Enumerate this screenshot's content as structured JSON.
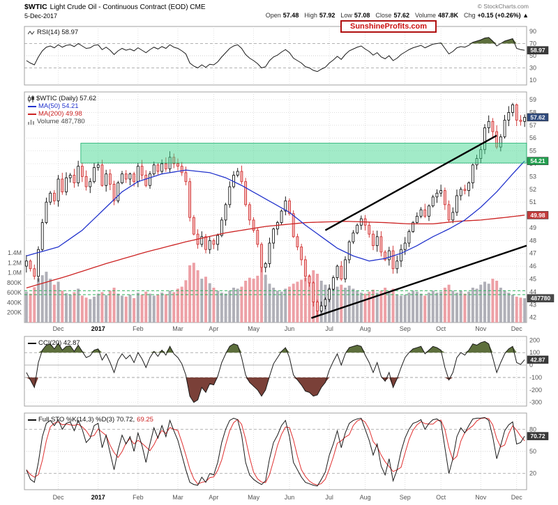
{
  "header": {
    "symbol": "$WTIC",
    "title": "Light Crude Oil - Continuous Contract (EOD) CME",
    "copyright": "© StockCharts.com",
    "date": "5-Dec-2017",
    "watermark": "SunshineProfits.com",
    "quote_items": [
      {
        "label": "Open",
        "value": "57.48"
      },
      {
        "label": "High",
        "value": "57.92"
      },
      {
        "label": "Low",
        "value": "57.08"
      },
      {
        "label": "Close",
        "value": "57.62"
      },
      {
        "label": "Volume",
        "value": "487.8K"
      },
      {
        "label": "Chg",
        "value": "+0.15 (+0.26%) ▲"
      }
    ]
  },
  "legends": {
    "rsi": "RSI(14) 58.97",
    "price_symbol": "$WTIC (Daily) 57.62",
    "ma50": "MA(50) 54.21",
    "ma200": "MA(200) 49.98",
    "volume": "Volume 487,780",
    "cci": "CCI(20) 42.87",
    "sto_kd": "Full STO %K(14,3) %D(3) 70.72,",
    "sto_d": "69.25"
  },
  "colors": {
    "candle_up": "#000000",
    "candle_up_fill": "#ffffff",
    "candle_down": "#cc2a2a",
    "candle_down_fill": "#f6b7b7",
    "volume_up": "#b0b0b8",
    "volume_down": "#eda0a6",
    "ma50": "#2233cc",
    "ma200": "#cc2222",
    "green_zone_fill": "rgba(70,215,145,0.5)",
    "green_zone_edge": "rgba(0,165,90,0.9)",
    "trendline": "#000000",
    "indicator_line": "#1a1a1a",
    "sto_d_line": "#e03030",
    "fill_overbought": "#5d6f3c",
    "fill_oversold": "#7a4038",
    "grid_dotted": "#d8d8d8",
    "grid_dashed": "#999999",
    "grid_mid": "#bbbbbb",
    "volume_dashed": "#2bb05a",
    "axis_text": "#555555",
    "panel_border": "#a0a0a0",
    "month_text": "#555555",
    "year_text": "#000000"
  },
  "axis_boxes": {
    "rsi": {
      "text": "58.97",
      "bg": "#3a3a3a",
      "at": 58.97
    },
    "price": {
      "text": "57.62",
      "bg": "#2f4a7d",
      "at": 57.62
    },
    "ma50": {
      "text": "54.21",
      "bg": "#23a050",
      "at": 54.21
    },
    "ma200": {
      "text": "49.98",
      "bg": "#c23b3b",
      "at": 49.98
    },
    "volume": {
      "text": "487780",
      "bg": "#4a4a4a",
      "at_k": 487.78
    },
    "cci": {
      "text": "42.87",
      "bg": "#3a3a3a",
      "at": 42.87
    },
    "sto": {
      "text": "70.72",
      "bg": "#3a3a3a",
      "at": 70.72
    }
  },
  "xaxis": {
    "labels": [
      "Dec",
      "2017",
      "Feb",
      "Mar",
      "Apr",
      "May",
      "Jun",
      "Jul",
      "Aug",
      "Sep",
      "Oct",
      "Nov",
      "Dec"
    ],
    "tick_indices": [
      8,
      18,
      28,
      38,
      47,
      57,
      66,
      76,
      85,
      95,
      104,
      114,
      123
    ],
    "n": 126
  },
  "chart_data": [
    {
      "panel": "rsi",
      "type": "line",
      "title": "RSI(14)",
      "last": 58.97,
      "ylim": [
        2,
        98
      ],
      "yticks": [
        90,
        70,
        50,
        30,
        10
      ],
      "levels": {
        "overbought": 70,
        "midline": 50,
        "oversold": 30
      },
      "values": [
        42,
        38,
        35,
        48,
        58,
        64,
        66,
        63,
        68,
        64,
        67,
        68,
        65,
        70,
        66,
        62,
        63,
        67,
        68,
        60,
        64,
        59,
        52,
        58,
        62,
        59,
        61,
        58,
        63,
        59,
        55,
        60,
        64,
        61,
        65,
        62,
        68,
        64,
        62,
        58,
        53,
        38,
        33,
        30,
        35,
        31,
        36,
        35,
        40,
        48,
        55,
        62,
        66,
        68,
        62,
        52,
        46,
        42,
        37,
        30,
        32,
        42,
        48,
        51,
        56,
        60,
        55,
        46,
        42,
        38,
        32,
        30,
        26,
        24,
        28,
        31,
        38,
        43,
        49,
        44,
        52,
        58,
        61,
        64,
        66,
        61,
        57,
        51,
        55,
        48,
        45,
        50,
        42,
        46,
        52,
        56,
        60,
        63,
        65,
        67,
        63,
        66,
        69,
        70,
        71,
        62,
        53,
        57,
        63,
        65,
        64,
        67,
        72,
        74,
        76,
        79,
        80,
        74,
        66,
        70,
        74,
        76,
        78,
        62,
        60,
        58.97
      ]
    },
    {
      "panel": "price",
      "type": "candlestick",
      "title": "$WTIC (Daily)",
      "last_close": 57.62,
      "ylim": [
        41.6,
        59.6
      ],
      "yticks": [
        59,
        58,
        57,
        56,
        55,
        54,
        53,
        52,
        51,
        50,
        49,
        48,
        47,
        46,
        45,
        44,
        43,
        42
      ],
      "close": [
        46.4,
        45.8,
        45.2,
        47.3,
        49.4,
        51.0,
        51.7,
        51.1,
        52.8,
        51.8,
        52.9,
        53.1,
        52.5,
        53.8,
        53.0,
        52.2,
        52.6,
        53.7,
        53.9,
        52.3,
        53.2,
        52.4,
        51.1,
        52.5,
        53.2,
        52.8,
        53.2,
        52.6,
        53.8,
        53.1,
        52.3,
        53.2,
        53.9,
        53.4,
        54.0,
        53.6,
        54.5,
        54.0,
        53.8,
        53.3,
        52.6,
        49.8,
        48.5,
        47.7,
        48.3,
        47.3,
        48.0,
        47.7,
        48.4,
        49.6,
        50.8,
        52.2,
        53.1,
        53.4,
        52.6,
        50.8,
        49.6,
        48.8,
        47.7,
        45.9,
        46.2,
        47.8,
        48.9,
        49.4,
        50.3,
        51.1,
        50.1,
        48.3,
        47.5,
        46.5,
        45.2,
        44.7,
        43.2,
        42.5,
        42.9,
        43.4,
        44.2,
        45.1,
        46.0,
        45.0,
        46.5,
        47.9,
        48.6,
        49.2,
        49.7,
        49.2,
        48.5,
        47.6,
        48.3,
        47.1,
        46.5,
        47.2,
        45.8,
        46.4,
        47.3,
        47.8,
        48.7,
        49.4,
        49.9,
        50.4,
        49.9,
        50.7,
        51.4,
        51.7,
        51.9,
        50.8,
        49.6,
        50.2,
        51.5,
        52.0,
        51.9,
        52.5,
        53.9,
        54.4,
        55.1,
        56.8,
        57.3,
        56.5,
        55.3,
        56.1,
        57.4,
        58.0,
        58.6,
        57.4,
        57.3,
        57.62
      ],
      "ma50": {
        "label": "MA(50)",
        "last": 54.21,
        "anchors": [
          [
            0,
            46.8
          ],
          [
            8,
            47.5
          ],
          [
            14,
            48.8
          ],
          [
            18,
            50.0
          ],
          [
            24,
            51.8
          ],
          [
            28,
            52.6
          ],
          [
            34,
            53.2
          ],
          [
            40,
            53.5
          ],
          [
            46,
            53.3
          ],
          [
            50,
            52.9
          ],
          [
            54,
            52.3
          ],
          [
            58,
            51.6
          ],
          [
            62,
            50.9
          ],
          [
            66,
            50.2
          ],
          [
            70,
            49.2
          ],
          [
            74,
            48.3
          ],
          [
            78,
            47.4
          ],
          [
            82,
            46.8
          ],
          [
            86,
            46.4
          ],
          [
            90,
            46.6
          ],
          [
            94,
            47.0
          ],
          [
            98,
            47.6
          ],
          [
            102,
            48.3
          ],
          [
            106,
            48.9
          ],
          [
            110,
            49.6
          ],
          [
            114,
            50.6
          ],
          [
            118,
            51.8
          ],
          [
            122,
            53.2
          ],
          [
            125,
            54.21
          ]
        ]
      },
      "ma200": {
        "label": "MA(200)",
        "last": 49.98,
        "anchors": [
          [
            0,
            44.3
          ],
          [
            10,
            45.2
          ],
          [
            20,
            46.2
          ],
          [
            30,
            47.1
          ],
          [
            40,
            47.9
          ],
          [
            50,
            48.6
          ],
          [
            60,
            49.1
          ],
          [
            70,
            49.4
          ],
          [
            80,
            49.5
          ],
          [
            90,
            49.4
          ],
          [
            96,
            49.3
          ],
          [
            102,
            49.3
          ],
          [
            108,
            49.5
          ],
          [
            114,
            49.6
          ],
          [
            120,
            49.8
          ],
          [
            125,
            49.98
          ]
        ]
      },
      "volume": {
        "label": "Volume",
        "last": 487780,
        "yticks_k": [
          1400,
          1200,
          1000,
          800,
          600,
          400,
          200
        ],
        "ytick_labels": [
          "1.4M",
          "1.2M",
          "1.0M",
          "800K",
          "600K",
          "400K",
          "200K"
        ],
        "dashed_lines_k": [
          560,
          640
        ],
        "values_k": [
          620,
          580,
          710,
          890,
          950,
          1020,
          880,
          760,
          820,
          640,
          590,
          560,
          610,
          680,
          540,
          500,
          470,
          520,
          580,
          610,
          550,
          640,
          700,
          580,
          540,
          520,
          560,
          490,
          600,
          560,
          620,
          580,
          540,
          560,
          600,
          570,
          640,
          610,
          680,
          720,
          850,
          1150,
          1200,
          1050,
          880,
          920,
          790,
          700,
          640,
          600,
          580,
          640,
          700,
          680,
          720,
          840,
          900,
          880,
          940,
          1100,
          960,
          780,
          700,
          640,
          620,
          680,
          720,
          780,
          820,
          860,
          900,
          950,
          1050,
          980,
          840,
          760,
          700,
          680,
          720,
          760,
          700,
          740,
          680,
          640,
          600,
          580,
          620,
          660,
          600,
          640,
          700,
          620,
          680,
          560,
          540,
          560,
          600,
          640,
          620,
          580,
          540,
          600,
          640,
          600,
          620,
          700,
          760,
          640,
          600,
          640,
          580,
          620,
          700,
          680,
          760,
          820,
          780,
          880,
          840,
          700,
          640,
          600,
          560,
          520,
          500,
          488
        ]
      },
      "green_zone": {
        "from_index": 14,
        "to_index": 126,
        "price_low": 54.05,
        "price_high": 55.6
      },
      "trendlines": [
        {
          "from": [
            71.5,
            41.95
          ],
          "to": [
            126,
            47.6
          ]
        },
        {
          "from": [
            75,
            48.8
          ],
          "to": [
            118,
            56.2
          ]
        }
      ]
    },
    {
      "panel": "cci",
      "type": "line",
      "title": "CCI(20)",
      "last": 42.87,
      "ylim": [
        -330,
        230
      ],
      "yticks": [
        200,
        100,
        0,
        -100,
        -200,
        -300
      ],
      "levels": {
        "upper": 100,
        "lower": -100,
        "zero": 0
      },
      "values": [
        -60,
        -120,
        -180,
        20,
        120,
        160,
        170,
        130,
        175,
        120,
        150,
        155,
        110,
        160,
        110,
        60,
        75,
        120,
        130,
        40,
        90,
        20,
        -60,
        40,
        90,
        50,
        80,
        20,
        100,
        50,
        -20,
        60,
        110,
        70,
        120,
        80,
        150,
        90,
        60,
        10,
        -80,
        -250,
        -300,
        -280,
        -180,
        -220,
        -150,
        -160,
        -90,
        20,
        90,
        150,
        170,
        160,
        60,
        -80,
        -140,
        -170,
        -200,
        -250,
        -200,
        -90,
        10,
        60,
        110,
        140,
        60,
        -80,
        -120,
        -160,
        -210,
        -220,
        -250,
        -240,
        -180,
        -140,
        -40,
        30,
        90,
        0,
        90,
        140,
        150,
        160,
        150,
        80,
        20,
        -60,
        20,
        -90,
        -130,
        -60,
        -180,
        -110,
        -20,
        60,
        100,
        130,
        140,
        150,
        90,
        120,
        150,
        140,
        120,
        -20,
        -120,
        -60,
        60,
        100,
        80,
        120,
        170,
        160,
        180,
        190,
        170,
        60,
        -60,
        20,
        90,
        130,
        150,
        20,
        5,
        42.87
      ]
    },
    {
      "panel": "stochastic",
      "type": "line",
      "title": "Full STO %K(14,3) %D(3)",
      "k_last": 70.72,
      "d_last": 69.25,
      "ylim": [
        -2,
        102
      ],
      "yticks": [
        80,
        50,
        20
      ],
      "levels": {
        "overbought": 80,
        "midline": 50,
        "oversold": 20
      },
      "k_values": [
        25,
        12,
        8,
        35,
        70,
        88,
        92,
        85,
        93,
        80,
        88,
        90,
        78,
        92,
        80,
        62,
        68,
        85,
        88,
        55,
        72,
        48,
        25,
        52,
        72,
        60,
        70,
        50,
        75,
        58,
        35,
        60,
        82,
        68,
        85,
        70,
        92,
        78,
        65,
        45,
        25,
        8,
        5,
        4,
        15,
        8,
        20,
        18,
        35,
        62,
        80,
        92,
        95,
        93,
        72,
        35,
        18,
        12,
        8,
        5,
        10,
        40,
        62,
        72,
        85,
        92,
        70,
        35,
        25,
        15,
        8,
        6,
        4,
        3,
        12,
        22,
        45,
        60,
        78,
        55,
        75,
        88,
        92,
        94,
        95,
        80,
        65,
        45,
        60,
        30,
        18,
        40,
        10,
        25,
        50,
        68,
        80,
        88,
        90,
        93,
        80,
        88,
        93,
        94,
        90,
        55,
        20,
        40,
        70,
        82,
        75,
        85,
        94,
        95,
        95,
        96,
        92,
        70,
        40,
        58,
        78,
        86,
        90,
        60,
        62,
        70.72
      ]
    }
  ]
}
